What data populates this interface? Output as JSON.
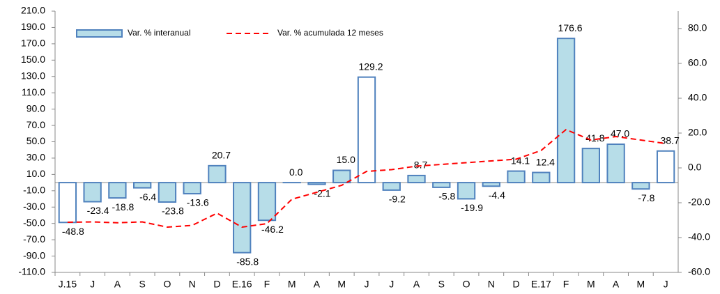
{
  "chart_data": {
    "type": "bar_line",
    "categories": [
      "J.15",
      "J",
      "A",
      "S",
      "O",
      "N",
      "D",
      "E.16",
      "F",
      "M",
      "A",
      "M",
      "J",
      "J",
      "A",
      "S",
      "O",
      "N",
      "D",
      "E.17",
      "F",
      "M",
      "A",
      "M",
      "J"
    ],
    "series": [
      {
        "name": "Var. % interanual",
        "type": "bar",
        "color": "#b7dde8",
        "border_color": "#4f81bd",
        "point_colors": [
          "#ffffff",
          "#b7dde8",
          "#b7dde8",
          "#b7dde8",
          "#b7dde8",
          "#b7dde8",
          "#b7dde8",
          "#b7dde8",
          "#b7dde8",
          "#b7dde8",
          "#b7dde8",
          "#b7dde8",
          "#ffffff",
          "#b7dde8",
          "#b7dde8",
          "#b7dde8",
          "#b7dde8",
          "#b7dde8",
          "#b7dde8",
          "#b7dde8",
          "#b7dde8",
          "#b7dde8",
          "#b7dde8",
          "#b7dde8",
          "#ffffff"
        ],
        "values": [
          -48.8,
          -23.4,
          -18.8,
          -6.4,
          -23.8,
          -13.6,
          20.7,
          -85.8,
          -46.2,
          0.0,
          -2.1,
          15.0,
          129.2,
          -9.2,
          8.7,
          -5.8,
          -19.9,
          -4.4,
          14.1,
          12.4,
          176.6,
          41.8,
          47.0,
          -7.8,
          38.7
        ],
        "value_labels": [
          "-48.8",
          "-23.4",
          "-18.8",
          "-6.4",
          "-23.8",
          "-13.6",
          "20.7",
          "-85.8",
          "-46.2",
          "0.0",
          "-2.1",
          "15.0",
          "129.2",
          "-9.2",
          "8.7",
          "-5.8",
          "-19.9",
          "-4.4",
          "14.1",
          "12.4",
          "176.6",
          "41.8",
          "47.0",
          "-7.8",
          "38.7"
        ]
      },
      {
        "name": "Var. % acumulada 12 meses",
        "type": "line",
        "axis": "y2",
        "color": "#ff0000",
        "dashed": true,
        "values": [
          -31.2,
          -31,
          -31.5,
          -31,
          -34,
          -33,
          -26,
          -34,
          -32,
          -18,
          -14,
          -10,
          -2,
          -1,
          1,
          2,
          3,
          4,
          5,
          10,
          22,
          16,
          18,
          16,
          14
        ]
      }
    ],
    "ylim": [
      -110,
      210
    ],
    "yticks": [
      {
        "value": -110,
        "label": "-110.0"
      },
      {
        "value": -90,
        "label": "-90.0"
      },
      {
        "value": -70,
        "label": "-70.0"
      },
      {
        "value": -50,
        "label": "-50.0"
      },
      {
        "value": -30,
        "label": "-30.0"
      },
      {
        "value": -10,
        "label": "-10.0"
      },
      {
        "value": 10,
        "label": "10.0"
      },
      {
        "value": 30,
        "label": "30.0"
      },
      {
        "value": 50,
        "label": "50.0"
      },
      {
        "value": 70,
        "label": "70.0"
      },
      {
        "value": 90,
        "label": "90.0"
      },
      {
        "value": 110,
        "label": "110.0"
      },
      {
        "value": 130,
        "label": "130.0"
      },
      {
        "value": 150,
        "label": "150.0"
      },
      {
        "value": 170,
        "label": "170.0"
      },
      {
        "value": 190,
        "label": "190.0"
      },
      {
        "value": 210,
        "label": "210.0"
      }
    ],
    "y2lim": [
      -60,
      90
    ],
    "y2ticks": [
      {
        "value": -60,
        "label": "-60.0"
      },
      {
        "value": -40,
        "label": "-40.0"
      },
      {
        "value": -20,
        "label": "-20.0"
      },
      {
        "value": 0,
        "label": "0.0"
      },
      {
        "value": 20,
        "label": "20.0"
      },
      {
        "value": 40,
        "label": "40.0"
      },
      {
        "value": 60,
        "label": "60.0"
      },
      {
        "value": 80,
        "label": "80.0"
      }
    ],
    "legend": "top-left"
  }
}
